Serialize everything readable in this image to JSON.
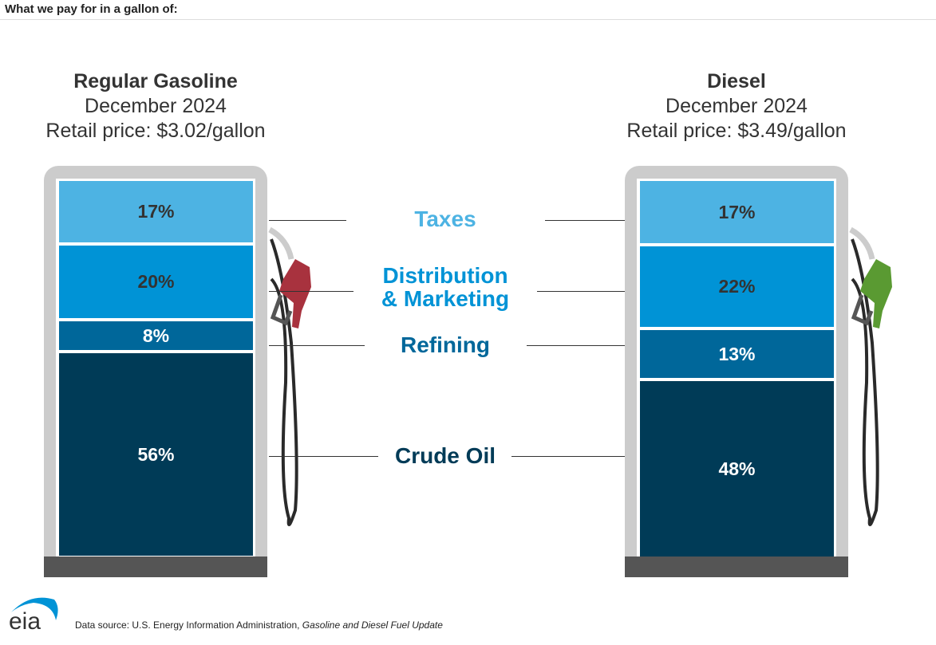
{
  "header": "What we pay for in a gallon of:",
  "chart_data": {
    "type": "stacked-bar",
    "categories": [
      "Taxes",
      "Distribution & Marketing",
      "Refining",
      "Crude Oil"
    ],
    "category_colors": [
      "#4db3e3",
      "#0093d6",
      "#00679a",
      "#003b57"
    ],
    "series": [
      {
        "name": "Regular Gasoline",
        "period": "December 2024",
        "price": "Retail price: $3.02/gallon",
        "values": [
          17,
          20,
          8,
          56
        ],
        "labels": [
          "17%",
          "20%",
          "8%",
          "56%"
        ]
      },
      {
        "name": "Diesel",
        "period": "December 2024",
        "price": "Retail price: $3.49/gallon",
        "values": [
          17,
          22,
          13,
          48
        ],
        "labels": [
          "17%",
          "22%",
          "13%",
          "48%"
        ]
      }
    ],
    "legend_lines": [
      "Taxes",
      "Distribution",
      "& Marketing",
      "Refining",
      "Crude Oil"
    ]
  },
  "nozzle_colors": {
    "gasoline": "#a8323e",
    "diesel": "#5a9a32"
  },
  "footer": {
    "source_prefix": "Data source: U.S. Energy Information Administration, ",
    "source_title": "Gasoline and Diesel Fuel Update",
    "logo": "eia"
  }
}
